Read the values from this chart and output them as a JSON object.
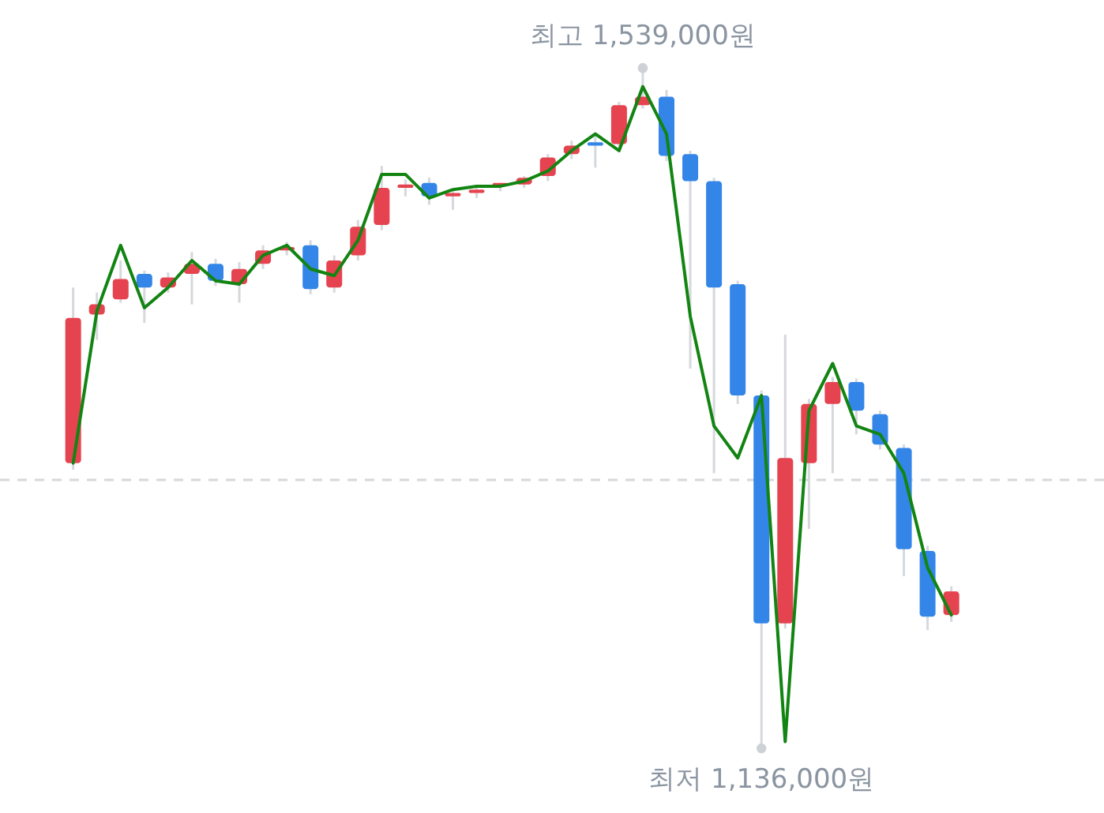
{
  "chart_data": {
    "type": "candlestick",
    "categories": [
      null,
      null,
      null,
      null,
      null,
      null,
      null,
      null,
      null,
      null,
      null,
      null,
      null,
      null,
      null,
      null,
      null,
      null,
      null,
      null,
      null,
      null,
      null,
      null,
      null,
      null,
      null,
      null,
      null,
      null,
      null,
      null,
      null,
      null,
      null,
      null,
      null,
      null
    ],
    "ohlc": [
      [
        1305000,
        1409000,
        1301000,
        1391000
      ],
      [
        1393000,
        1406000,
        1378000,
        1399000
      ],
      [
        1402000,
        1425000,
        1400000,
        1414000
      ],
      [
        1417000,
        1419000,
        1388000,
        1409000
      ],
      [
        1409000,
        1418000,
        1406000,
        1415000
      ],
      [
        1417000,
        1430000,
        1399000,
        1423000
      ],
      [
        1423000,
        1426000,
        1410000,
        1413000
      ],
      [
        1411000,
        1424000,
        1400000,
        1420000
      ],
      [
        1423000,
        1434000,
        1420000,
        1431000
      ],
      [
        1431000,
        1436000,
        1428000,
        1433000
      ],
      [
        1434000,
        1437000,
        1405000,
        1408000
      ],
      [
        1409000,
        1428000,
        1406000,
        1425000
      ],
      [
        1428000,
        1449000,
        1425000,
        1445000
      ],
      [
        1446000,
        1481000,
        1443000,
        1468000
      ],
      [
        1468000,
        1473000,
        1463000,
        1470000
      ],
      [
        1471000,
        1474000,
        1458000,
        1463000
      ],
      [
        1463000,
        1466000,
        1455000,
        1465000
      ],
      [
        1465000,
        1468000,
        1462000,
        1467000
      ],
      [
        1469000,
        1471000,
        1466000,
        1471000
      ],
      [
        1470000,
        1475000,
        1468000,
        1474000
      ],
      [
        1475000,
        1488000,
        1472000,
        1486000
      ],
      [
        1488000,
        1496000,
        1485000,
        1493000
      ],
      [
        1495000,
        1500000,
        1480000,
        1493000
      ],
      [
        1494000,
        1519000,
        1492000,
        1517000
      ],
      [
        1517000,
        1539000,
        1515000,
        1522000
      ],
      [
        1522000,
        1526000,
        1484000,
        1487000
      ],
      [
        1488000,
        1490000,
        1361000,
        1472000
      ],
      [
        1472000,
        1474000,
        1299000,
        1409000
      ],
      [
        1411000,
        1413000,
        1340000,
        1345000
      ],
      [
        1345000,
        1348000,
        1136000,
        1210000
      ],
      [
        1210000,
        1381000,
        1207000,
        1308000
      ],
      [
        1305000,
        1343000,
        1266000,
        1340000
      ],
      [
        1340000,
        1356000,
        1299000,
        1353000
      ],
      [
        1353000,
        1355000,
        1322000,
        1336000
      ],
      [
        1334000,
        1336000,
        1313000,
        1316000
      ],
      [
        1314000,
        1316000,
        1238000,
        1254000
      ],
      [
        1253000,
        1256000,
        1206000,
        1214000
      ],
      [
        1215000,
        1232000,
        1211000,
        1229000
      ]
    ],
    "colors": [
      "#e5434f",
      "#e5434f",
      "#e5434f",
      "#3485e8",
      "#e5434f",
      "#e5434f",
      "#3485e8",
      "#e5434f",
      "#e5434f",
      "#e5434f",
      "#3485e8",
      "#e5434f",
      "#e5434f",
      "#e5434f",
      "#e5434f",
      "#3485e8",
      "#e5434f",
      "#e5434f",
      "#e5434f",
      "#e5434f",
      "#e5434f",
      "#e5434f",
      "#3485e8",
      "#e5434f",
      "#e5434f",
      "#3485e8",
      "#3485e8",
      "#3485e8",
      "#3485e8",
      "#3485e8",
      "#e5434f",
      "#e5434f",
      "#e5434f",
      "#3485e8",
      "#3485e8",
      "#3485e8",
      "#3485e8",
      "#e5434f"
    ],
    "series": [
      {
        "type": "line",
        "color": "#128412",
        "values": [
          1305000,
          1395000,
          1434000,
          1397000,
          1409000,
          1425000,
          1413000,
          1411000,
          1428000,
          1434000,
          1420000,
          1416000,
          1437000,
          1476000,
          1476000,
          1462000,
          1467000,
          1469000,
          1469000,
          1472000,
          1478000,
          1490000,
          1500000,
          1490000,
          1528000,
          1500000,
          1392000,
          1327000,
          1308000,
          1345000,
          1140000,
          1336000,
          1364000,
          1327000,
          1322000,
          1299000,
          1243000,
          1215000
        ]
      }
    ],
    "ref_lines": [
      {
        "axis": "y",
        "value": 1295000,
        "color": "#d5d8dc",
        "line_style": "dashed"
      }
    ],
    "annotations": [
      {
        "text": "최고 1,539,000원",
        "y": 1539000
      },
      {
        "text": "최저 1,136,000원",
        "y": 1136000
      }
    ]
  }
}
